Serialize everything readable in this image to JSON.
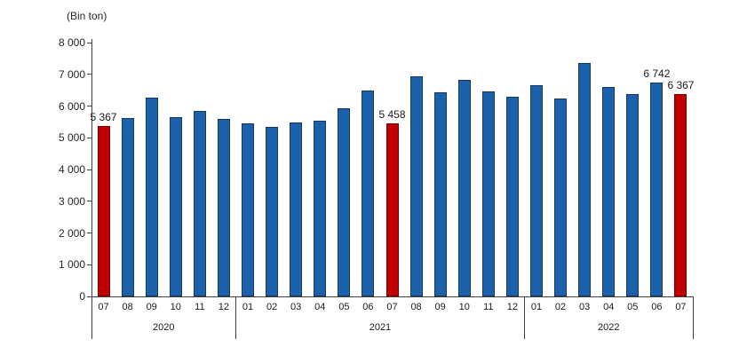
{
  "chart": {
    "unit_label": "(Bin ton)"
  },
  "chart_data": {
    "type": "bar",
    "title": "",
    "unit_label": "(Bin ton)",
    "xlabel": "",
    "ylabel": "(Bin ton)",
    "ylim": [
      0,
      8000
    ],
    "grid": false,
    "legend": false,
    "y_ticks": [
      {
        "label": "0",
        "value": 0
      },
      {
        "label": "1 000",
        "value": 1000
      },
      {
        "label": "2 000",
        "value": 2000
      },
      {
        "label": "3 000",
        "value": 3000
      },
      {
        "label": "4 000",
        "value": 4000
      },
      {
        "label": "5 000",
        "value": 5000
      },
      {
        "label": "6 000",
        "value": 6000
      },
      {
        "label": "7 000",
        "value": 7000
      },
      {
        "label": "8 000",
        "value": 8000
      }
    ],
    "year_groups": [
      {
        "label": "2020",
        "count": 6
      },
      {
        "label": "2021",
        "count": 12
      },
      {
        "label": "2022",
        "count": 7
      }
    ],
    "points": [
      {
        "month": "07",
        "year": "2020",
        "value": 5367,
        "highlighted": true,
        "label": "5 367"
      },
      {
        "month": "08",
        "year": "2020",
        "value": 5620,
        "highlighted": false,
        "label": null
      },
      {
        "month": "09",
        "year": "2020",
        "value": 6270,
        "highlighted": false,
        "label": null
      },
      {
        "month": "10",
        "year": "2020",
        "value": 5640,
        "highlighted": false,
        "label": null
      },
      {
        "month": "11",
        "year": "2020",
        "value": 5850,
        "highlighted": false,
        "label": null
      },
      {
        "month": "12",
        "year": "2020",
        "value": 5590,
        "highlighted": false,
        "label": null
      },
      {
        "month": "01",
        "year": "2021",
        "value": 5450,
        "highlighted": false,
        "label": null
      },
      {
        "month": "02",
        "year": "2021",
        "value": 5350,
        "highlighted": false,
        "label": null
      },
      {
        "month": "03",
        "year": "2021",
        "value": 5490,
        "highlighted": false,
        "label": null
      },
      {
        "month": "04",
        "year": "2021",
        "value": 5550,
        "highlighted": false,
        "label": null
      },
      {
        "month": "05",
        "year": "2021",
        "value": 5940,
        "highlighted": false,
        "label": null
      },
      {
        "month": "06",
        "year": "2021",
        "value": 6480,
        "highlighted": false,
        "label": null
      },
      {
        "month": "07",
        "year": "2021",
        "value": 5458,
        "highlighted": true,
        "label": "5 458"
      },
      {
        "month": "08",
        "year": "2021",
        "value": 6950,
        "highlighted": false,
        "label": null
      },
      {
        "month": "09",
        "year": "2021",
        "value": 6430,
        "highlighted": false,
        "label": null
      },
      {
        "month": "10",
        "year": "2021",
        "value": 6820,
        "highlighted": false,
        "label": null
      },
      {
        "month": "11",
        "year": "2021",
        "value": 6460,
        "highlighted": false,
        "label": null
      },
      {
        "month": "12",
        "year": "2021",
        "value": 6290,
        "highlighted": false,
        "label": null
      },
      {
        "month": "01",
        "year": "2022",
        "value": 6650,
        "highlighted": false,
        "label": null
      },
      {
        "month": "02",
        "year": "2022",
        "value": 6230,
        "highlighted": false,
        "label": null
      },
      {
        "month": "03",
        "year": "2022",
        "value": 7350,
        "highlighted": false,
        "label": null
      },
      {
        "month": "04",
        "year": "2022",
        "value": 6600,
        "highlighted": false,
        "label": null
      },
      {
        "month": "05",
        "year": "2022",
        "value": 6390,
        "highlighted": false,
        "label": null
      },
      {
        "month": "06",
        "year": "2022",
        "value": 6742,
        "highlighted": false,
        "label": "6 742"
      },
      {
        "month": "07",
        "year": "2022",
        "value": 6367,
        "highlighted": true,
        "label": "6 367"
      }
    ],
    "colors": {
      "bar_blue": "#1C61AB",
      "bar_blue_border": "#17375D",
      "bar_red": "#C00000",
      "bar_red_border": "#7F0000",
      "axis": "#404040",
      "text": "#1A1A1A"
    }
  }
}
